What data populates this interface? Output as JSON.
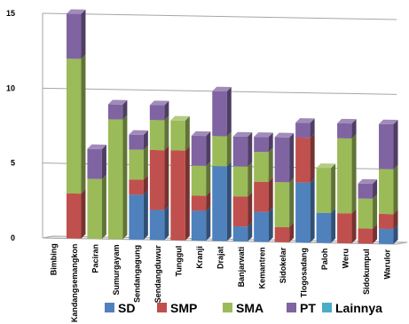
{
  "chart_data": {
    "type": "bar",
    "stacked": true,
    "three_d": true,
    "categories": [
      "Bimbing",
      "Kandangsemangkon",
      "Paciran",
      "Sumurgayam",
      "Sendangagung",
      "Sendangduwur",
      "Tunggul",
      "Kranji",
      "Drajat",
      "Banjarwati",
      "Kemantren",
      "Sidokelar",
      "Tlogosadang",
      "Paloh",
      "Weru",
      "Sidokumpul",
      "Warulor"
    ],
    "series": [
      {
        "name": "SD",
        "color": "#4f81bd",
        "values": [
          0,
          0,
          0,
          0,
          3,
          2,
          0,
          2,
          5,
          1,
          2,
          0,
          4,
          2,
          0,
          0,
          1
        ]
      },
      {
        "name": "SMP",
        "color": "#c0504d",
        "values": [
          0,
          3,
          0,
          0,
          1,
          4,
          6,
          1,
          0,
          2,
          2,
          1,
          3,
          0,
          2,
          1,
          1
        ]
      },
      {
        "name": "SMA",
        "color": "#9bbb59",
        "values": [
          0,
          9,
          4,
          8,
          2,
          2,
          2,
          2,
          2,
          2,
          2,
          3,
          0,
          3,
          5,
          2,
          3
        ]
      },
      {
        "name": "PT",
        "color": "#8064a2",
        "values": [
          0,
          3,
          2,
          1,
          1,
          1,
          0,
          2,
          3,
          2,
          1,
          3,
          1,
          0,
          1,
          1,
          3
        ]
      },
      {
        "name": "Lainnya",
        "color": "#4bacc6",
        "values": [
          0,
          0,
          0,
          0,
          0,
          0,
          0,
          0,
          0,
          0,
          0,
          0,
          0,
          0,
          0,
          0,
          0
        ]
      }
    ],
    "yticks": [
      "0",
      "5",
      "10",
      "15"
    ],
    "ylim": [
      0,
      15
    ],
    "grid": true,
    "legend_position": "bottom"
  }
}
